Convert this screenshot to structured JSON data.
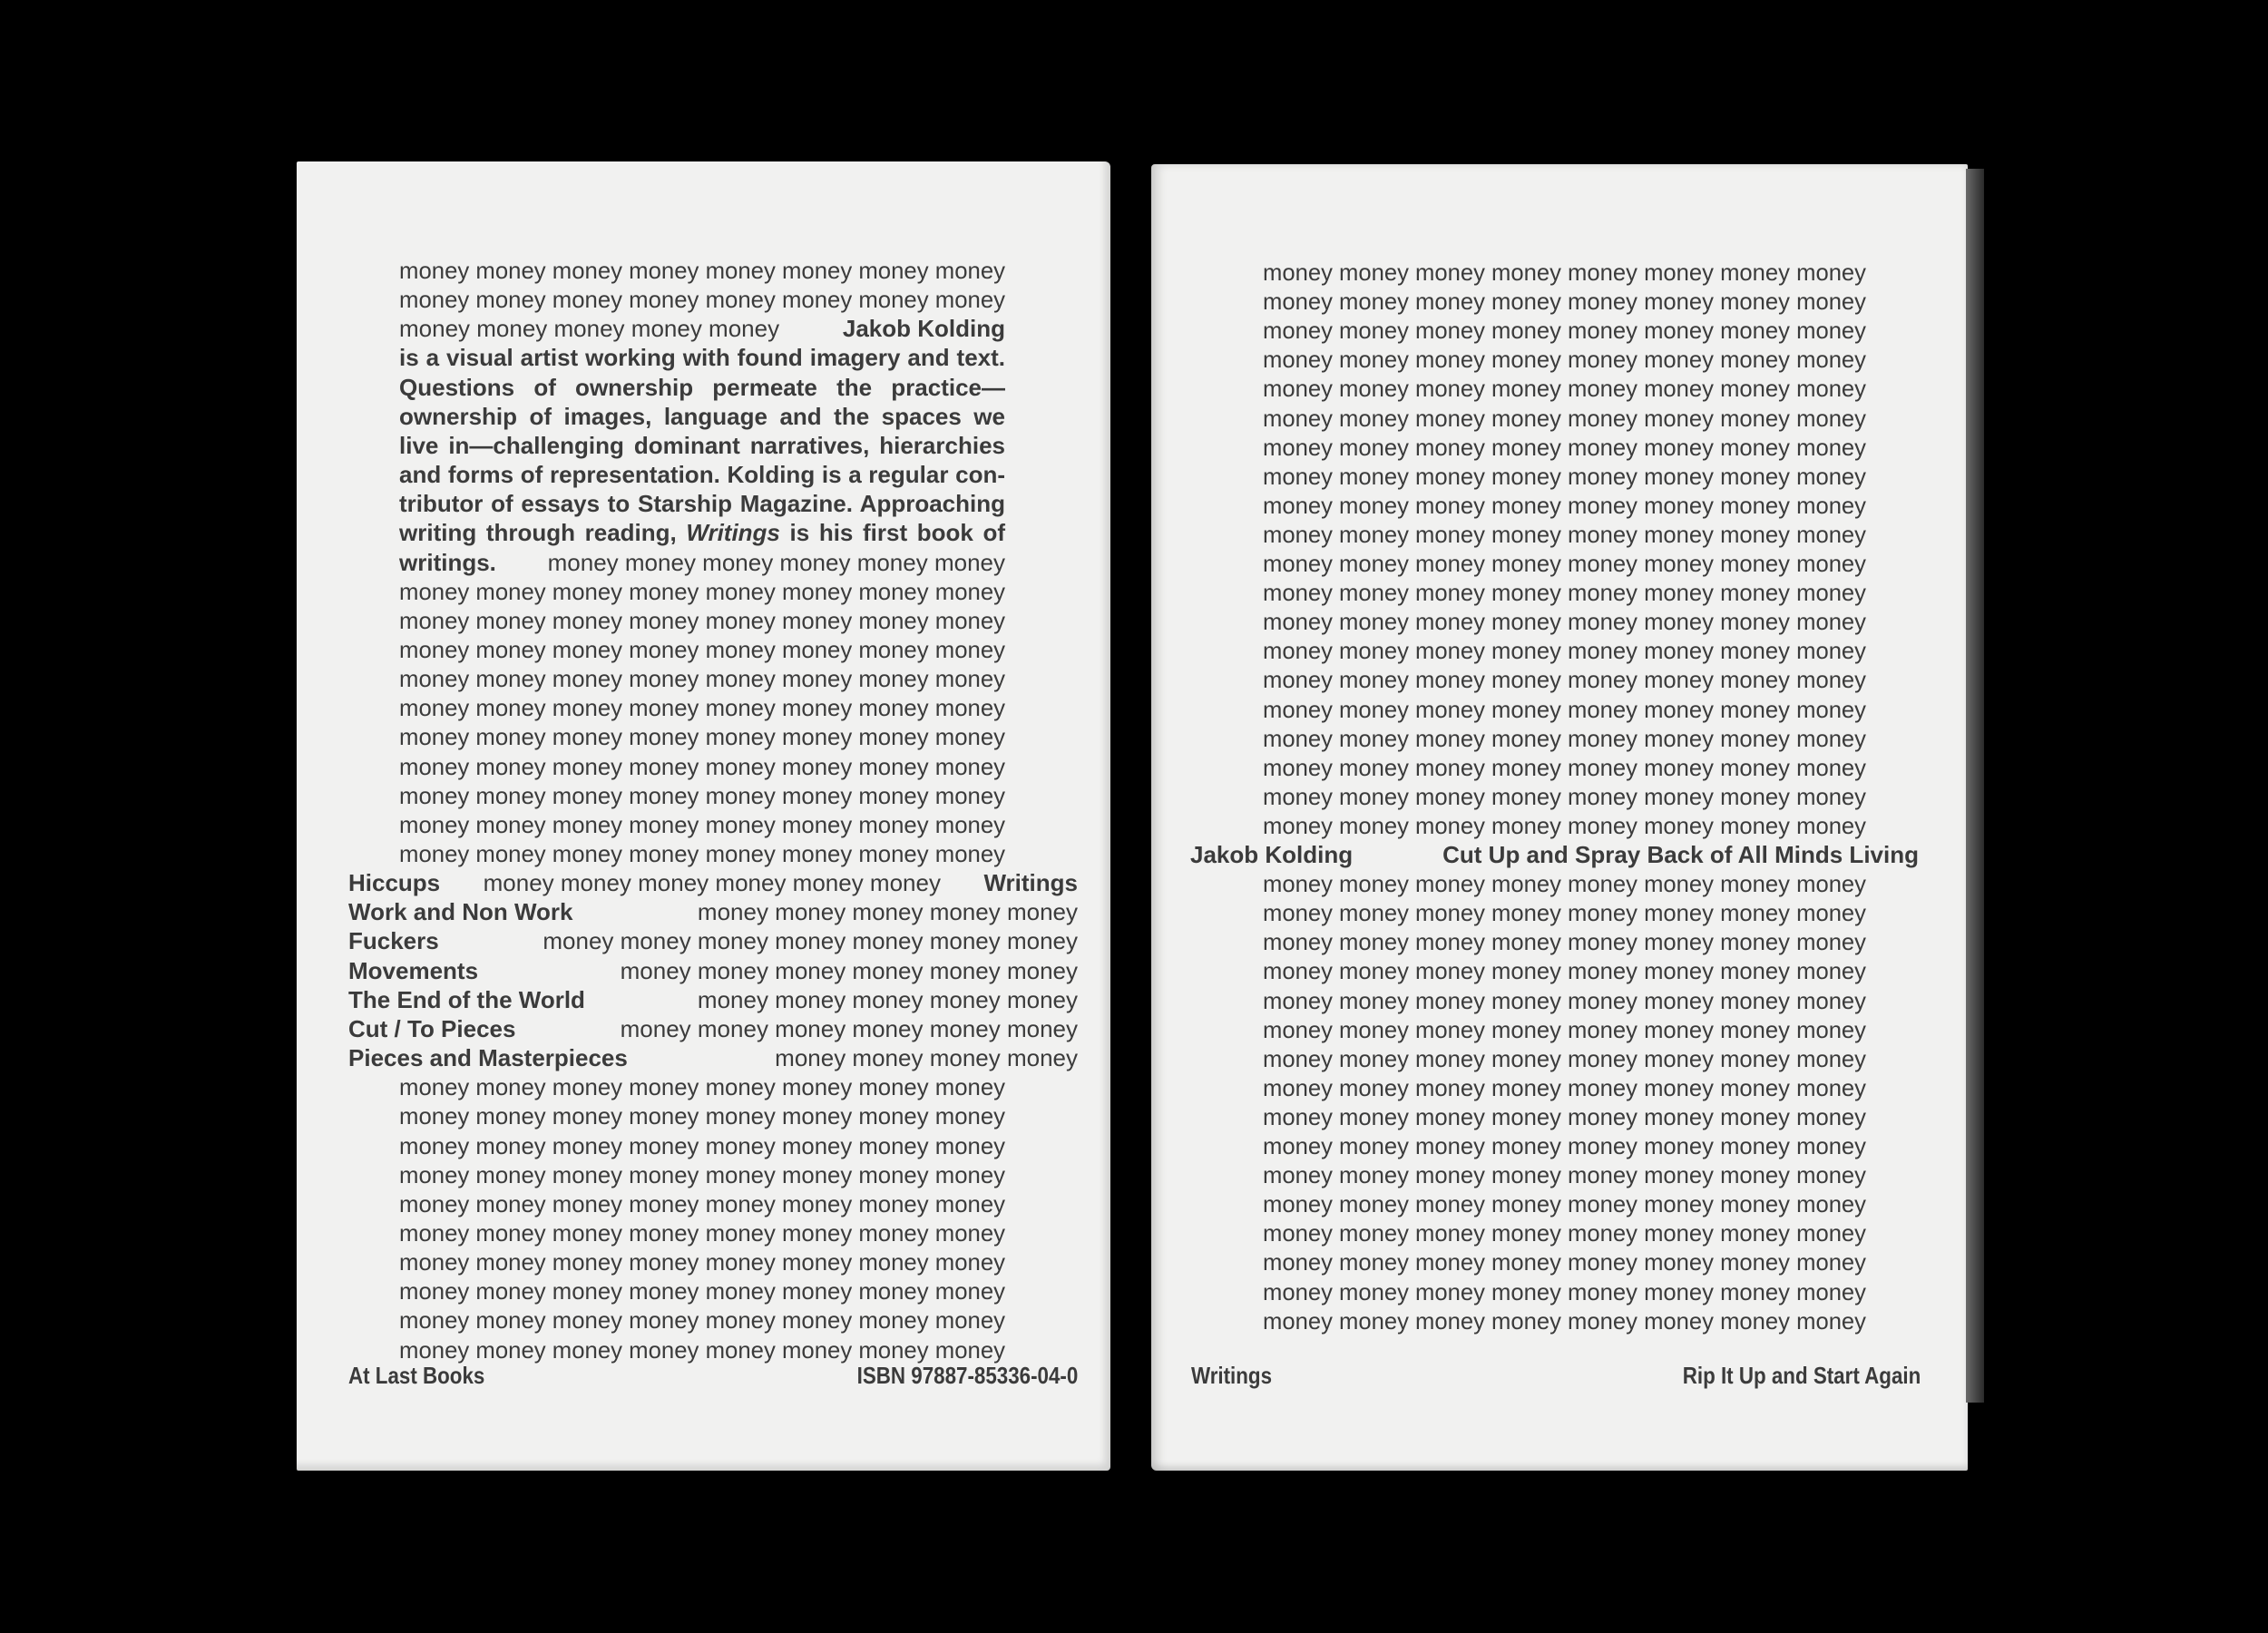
{
  "left_cover": {
    "rows": [
      [
        {
          "text": "money money money money money money money money"
        }
      ],
      [
        {
          "text": "money money money money money money money money"
        }
      ],
      [
        {
          "text": "money money money money money"
        },
        {
          "text": "Jakob Kolding",
          "bold": true
        }
      ],
      [
        {
          "text": "is a visual artist working with found imagery and text.",
          "bold": true
        }
      ],
      [
        {
          "text": "Questions of ownership permeate the practice—",
          "bold": true
        }
      ],
      [
        {
          "text": "ownership of images, language and the spaces we",
          "bold": true
        }
      ],
      [
        {
          "text": "live in—challenging dominant narratives, hierarchies",
          "bold": true
        }
      ],
      [
        {
          "text": "and forms of representation. Kolding is a regular con-",
          "bold": true
        }
      ],
      [
        {
          "text": "tributor of essays to Starship Magazine. Approaching",
          "bold": true
        }
      ],
      [
        {
          "bold": true,
          "runs": [
            {
              "text": "writing through reading, "
            },
            {
              "text": "Writings",
              "italic": true
            },
            {
              "text": " is his first book of"
            }
          ]
        }
      ],
      [
        {
          "text": "writings.",
          "bold": true
        },
        {
          "text": "money money money money money money"
        }
      ],
      [
        {
          "text": "money money money money money money money money"
        }
      ],
      [
        {
          "text": "money money money money money money money money"
        }
      ],
      [
        {
          "text": "money money money money money money money money"
        }
      ],
      [
        {
          "text": "money money money money money money money money"
        }
      ],
      [
        {
          "text": "money money money money money money money money"
        }
      ],
      [
        {
          "text": "money money money money money money money money"
        }
      ],
      [
        {
          "text": "money money money money money money money money"
        }
      ],
      [
        {
          "text": "money money money money money money money money"
        }
      ],
      [
        {
          "text": "money money money money money money money money"
        }
      ],
      [
        {
          "text": "money money money money money money money money"
        }
      ],
      [
        {
          "text": "Hiccups",
          "bold": true
        },
        {
          "text": "money money money money money money"
        },
        {
          "text": "Writings",
          "bold": true
        }
      ],
      [
        {
          "text": "Work and Non Work",
          "bold": true
        },
        {
          "text": "money money money money money"
        }
      ],
      [
        {
          "text": "Fuckers",
          "bold": true
        },
        {
          "text": "money money money money money money money"
        }
      ],
      [
        {
          "text": "Movements",
          "bold": true
        },
        {
          "text": "money money money money money money"
        }
      ],
      [
        {
          "text": "The End of the World",
          "bold": true
        },
        {
          "text": "money money money money money"
        }
      ],
      [
        {
          "text": "Cut / To Pieces",
          "bold": true
        },
        {
          "text": "money money money money money money"
        }
      ],
      [
        {
          "text": "Pieces and Masterpieces",
          "bold": true
        },
        {
          "text": "money money money money"
        }
      ],
      [
        {
          "text": "money money money money money money money money"
        }
      ],
      [
        {
          "text": "money money money money money money money money"
        }
      ],
      [
        {
          "text": "money money money money money money money money"
        }
      ],
      [
        {
          "text": "money money money money money money money money"
        }
      ],
      [
        {
          "text": "money money money money money money money money"
        }
      ],
      [
        {
          "text": "money money money money money money money money"
        }
      ],
      [
        {
          "text": "money money money money money money money money"
        }
      ],
      [
        {
          "text": "money money money money money money money money"
        }
      ],
      [
        {
          "text": "money money money money money money money money"
        }
      ],
      [
        {
          "text": "money money money money money money money money"
        }
      ]
    ],
    "publisher": "At Last Books",
    "isbn": "ISBN 97887-85336-04-0"
  },
  "right_cover": {
    "rows": [
      [
        {
          "text": "money money money money money money money money"
        }
      ],
      [
        {
          "text": "money money money money money money money money"
        }
      ],
      [
        {
          "text": "money money money money money money money money"
        }
      ],
      [
        {
          "text": "money money money money money money money money"
        }
      ],
      [
        {
          "text": "money money money money money money money money"
        }
      ],
      [
        {
          "text": "money money money money money money money money"
        }
      ],
      [
        {
          "text": "money money money money money money money money"
        }
      ],
      [
        {
          "text": "money money money money money money money money"
        }
      ],
      [
        {
          "text": "money money money money money money money money"
        }
      ],
      [
        {
          "text": "money money money money money money money money"
        }
      ],
      [
        {
          "text": "money money money money money money money money"
        }
      ],
      [
        {
          "text": "money money money money money money money money"
        }
      ],
      [
        {
          "text": "money money money money money money money money"
        }
      ],
      [
        {
          "text": "money money money money money money money money"
        }
      ],
      [
        {
          "text": "money money money money money money money money"
        }
      ],
      [
        {
          "text": "money money money money money money money money"
        }
      ],
      [
        {
          "text": "money money money money money money money money"
        }
      ],
      [
        {
          "text": "money money money money money money money money"
        }
      ],
      [
        {
          "text": "money money money money money money money money"
        }
      ],
      [
        {
          "text": "money money money money money money money money"
        }
      ],
      [
        {
          "text": "Jakob Kolding",
          "bold": true
        },
        {
          "text": "Cut Up and Spray Back of All Minds Living",
          "bold": true
        }
      ],
      [
        {
          "text": "money money money money money money money money"
        }
      ],
      [
        {
          "text": "money money money money money money money money"
        }
      ],
      [
        {
          "text": "money money money money money money money money"
        }
      ],
      [
        {
          "text": "money money money money money money money money"
        }
      ],
      [
        {
          "text": "money money money money money money money money"
        }
      ],
      [
        {
          "text": "money money money money money money money money"
        }
      ],
      [
        {
          "text": "money money money money money money money money"
        }
      ],
      [
        {
          "text": "money money money money money money money money"
        }
      ],
      [
        {
          "text": "money money money money money money money money"
        }
      ],
      [
        {
          "text": "money money money money money money money money"
        }
      ],
      [
        {
          "text": "money money money money money money money money"
        }
      ],
      [
        {
          "text": "money money money money money money money money"
        }
      ],
      [
        {
          "text": "money money money money money money money money"
        }
      ],
      [
        {
          "text": "money money money money money money money money"
        }
      ],
      [
        {
          "text": "money money money money money money money money"
        }
      ],
      [
        {
          "text": "money money money money money money money money"
        }
      ]
    ],
    "footer_title": "Writings",
    "footer_series": "Rip It Up and Start Again"
  }
}
